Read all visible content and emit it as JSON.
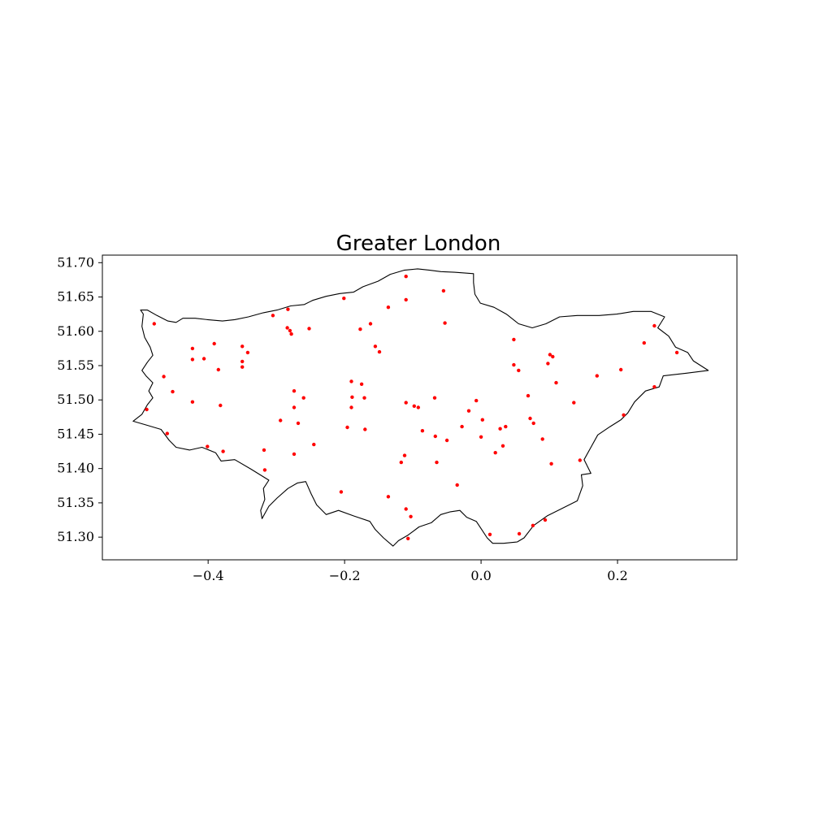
{
  "chart_data": {
    "type": "scatter",
    "title": "Greater London",
    "xlabel": "",
    "ylabel": "",
    "xlim": [
      -0.555,
      0.375
    ],
    "ylim": [
      51.267,
      51.711
    ],
    "xticks": [
      -0.4,
      -0.2,
      0.0,
      0.2
    ],
    "xtick_labels": [
      "−0.4",
      "−0.2",
      "0.0",
      "0.2"
    ],
    "yticks": [
      51.3,
      51.35,
      51.4,
      51.45,
      51.5,
      51.55,
      51.6,
      51.65,
      51.7
    ],
    "ytick_labels": [
      "51.30",
      "51.35",
      "51.40",
      "51.45",
      "51.50",
      "51.55",
      "51.60",
      "51.65",
      "51.70"
    ],
    "grid": false,
    "legend": false,
    "colors": {
      "points": "#ff0000",
      "boundary": "#000000",
      "axes": "#000000",
      "background": "#ffffff"
    },
    "boundary": {
      "name": "Greater London boundary",
      "coords": [
        [
          -0.51,
          51.469
        ],
        [
          -0.497,
          51.479
        ],
        [
          -0.489,
          51.493
        ],
        [
          -0.481,
          51.503
        ],
        [
          -0.487,
          51.513
        ],
        [
          -0.481,
          51.525
        ],
        [
          -0.491,
          51.535
        ],
        [
          -0.497,
          51.543
        ],
        [
          -0.489,
          51.555
        ],
        [
          -0.481,
          51.565
        ],
        [
          -0.485,
          51.577
        ],
        [
          -0.493,
          51.591
        ],
        [
          -0.497,
          51.607
        ],
        [
          -0.495,
          51.625
        ],
        [
          -0.499,
          51.631
        ],
        [
          -0.489,
          51.631
        ],
        [
          -0.475,
          51.623
        ],
        [
          -0.459,
          51.615
        ],
        [
          -0.447,
          51.613
        ],
        [
          -0.437,
          51.619
        ],
        [
          -0.419,
          51.619
        ],
        [
          -0.401,
          51.617
        ],
        [
          -0.379,
          51.615
        ],
        [
          -0.361,
          51.617
        ],
        [
          -0.341,
          51.621
        ],
        [
          -0.319,
          51.627
        ],
        [
          -0.299,
          51.631
        ],
        [
          -0.279,
          51.637
        ],
        [
          -0.259,
          51.639
        ],
        [
          -0.247,
          51.645
        ],
        [
          -0.227,
          51.651
        ],
        [
          -0.207,
          51.655
        ],
        [
          -0.187,
          51.657
        ],
        [
          -0.173,
          51.665
        ],
        [
          -0.151,
          51.673
        ],
        [
          -0.133,
          51.683
        ],
        [
          -0.113,
          51.689
        ],
        [
          -0.093,
          51.691
        ],
        [
          -0.075,
          51.689
        ],
        [
          -0.059,
          51.687
        ],
        [
          -0.039,
          51.686
        ],
        [
          -0.011,
          51.684
        ],
        [
          -0.011,
          51.671
        ],
        [
          -0.009,
          51.654
        ],
        [
          -0.001,
          51.641
        ],
        [
          0.019,
          51.635
        ],
        [
          0.037,
          51.625
        ],
        [
          0.055,
          51.611
        ],
        [
          0.075,
          51.605
        ],
        [
          0.095,
          51.611
        ],
        [
          0.115,
          51.621
        ],
        [
          0.141,
          51.623
        ],
        [
          0.173,
          51.623
        ],
        [
          0.199,
          51.625
        ],
        [
          0.223,
          51.629
        ],
        [
          0.249,
          51.629
        ],
        [
          0.269,
          51.621
        ],
        [
          0.259,
          51.605
        ],
        [
          0.275,
          51.593
        ],
        [
          0.285,
          51.577
        ],
        [
          0.303,
          51.569
        ],
        [
          0.311,
          51.557
        ],
        [
          0.333,
          51.543
        ],
        [
          0.301,
          51.539
        ],
        [
          0.267,
          51.535
        ],
        [
          0.261,
          51.519
        ],
        [
          0.241,
          51.513
        ],
        [
          0.225,
          51.497
        ],
        [
          0.215,
          51.481
        ],
        [
          0.205,
          51.471
        ],
        [
          0.189,
          51.461
        ],
        [
          0.171,
          51.449
        ],
        [
          0.161,
          51.431
        ],
        [
          0.151,
          51.413
        ],
        [
          0.161,
          51.393
        ],
        [
          0.147,
          51.391
        ],
        [
          0.149,
          51.375
        ],
        [
          0.141,
          51.353
        ],
        [
          0.117,
          51.341
        ],
        [
          0.097,
          51.331
        ],
        [
          0.077,
          51.317
        ],
        [
          0.063,
          51.299
        ],
        [
          0.053,
          51.293
        ],
        [
          0.033,
          51.291
        ],
        [
          0.017,
          51.291
        ],
        [
          0.009,
          51.299
        ],
        [
          0.001,
          51.311
        ],
        [
          -0.007,
          51.323
        ],
        [
          -0.021,
          51.329
        ],
        [
          -0.031,
          51.339
        ],
        [
          -0.045,
          51.337
        ],
        [
          -0.059,
          51.333
        ],
        [
          -0.073,
          51.321
        ],
        [
          -0.091,
          51.315
        ],
        [
          -0.107,
          51.303
        ],
        [
          -0.121,
          51.295
        ],
        [
          -0.129,
          51.287
        ],
        [
          -0.143,
          51.299
        ],
        [
          -0.155,
          51.311
        ],
        [
          -0.163,
          51.323
        ],
        [
          -0.187,
          51.331
        ],
        [
          -0.209,
          51.339
        ],
        [
          -0.227,
          51.333
        ],
        [
          -0.241,
          51.347
        ],
        [
          -0.249,
          51.363
        ],
        [
          -0.257,
          51.381
        ],
        [
          -0.269,
          51.379
        ],
        [
          -0.283,
          51.371
        ],
        [
          -0.299,
          51.357
        ],
        [
          -0.311,
          51.345
        ],
        [
          -0.321,
          51.327
        ],
        [
          -0.323,
          51.339
        ],
        [
          -0.317,
          51.355
        ],
        [
          -0.319,
          51.371
        ],
        [
          -0.311,
          51.383
        ],
        [
          -0.337,
          51.399
        ],
        [
          -0.361,
          51.413
        ],
        [
          -0.381,
          51.411
        ],
        [
          -0.389,
          51.423
        ],
        [
          -0.409,
          51.431
        ],
        [
          -0.427,
          51.427
        ],
        [
          -0.447,
          51.431
        ],
        [
          -0.457,
          51.441
        ],
        [
          -0.469,
          51.457
        ],
        [
          -0.489,
          51.463
        ],
        [
          -0.51,
          51.469
        ]
      ]
    },
    "points": [
      {
        "x": -0.479,
        "y": 51.611
      },
      {
        "x": -0.465,
        "y": 51.534
      },
      {
        "x": -0.49,
        "y": 51.486
      },
      {
        "x": -0.46,
        "y": 51.451
      },
      {
        "x": -0.452,
        "y": 51.512
      },
      {
        "x": -0.423,
        "y": 51.575
      },
      {
        "x": -0.423,
        "y": 51.559
      },
      {
        "x": -0.406,
        "y": 51.56
      },
      {
        "x": -0.423,
        "y": 51.497
      },
      {
        "x": -0.401,
        "y": 51.432
      },
      {
        "x": -0.378,
        "y": 51.425
      },
      {
        "x": -0.391,
        "y": 51.582
      },
      {
        "x": -0.385,
        "y": 51.544
      },
      {
        "x": -0.382,
        "y": 51.492
      },
      {
        "x": -0.35,
        "y": 51.578
      },
      {
        "x": -0.342,
        "y": 51.569
      },
      {
        "x": -0.35,
        "y": 51.556
      },
      {
        "x": -0.35,
        "y": 51.548
      },
      {
        "x": -0.318,
        "y": 51.427
      },
      {
        "x": -0.317,
        "y": 51.398
      },
      {
        "x": -0.305,
        "y": 51.623
      },
      {
        "x": -0.283,
        "y": 51.632
      },
      {
        "x": -0.284,
        "y": 51.605
      },
      {
        "x": -0.28,
        "y": 51.601
      },
      {
        "x": -0.278,
        "y": 51.596
      },
      {
        "x": -0.252,
        "y": 51.604
      },
      {
        "x": -0.274,
        "y": 51.513
      },
      {
        "x": -0.26,
        "y": 51.503
      },
      {
        "x": -0.274,
        "y": 51.489
      },
      {
        "x": -0.294,
        "y": 51.47
      },
      {
        "x": -0.268,
        "y": 51.466
      },
      {
        "x": -0.274,
        "y": 51.421
      },
      {
        "x": -0.245,
        "y": 51.435
      },
      {
        "x": -0.201,
        "y": 51.648
      },
      {
        "x": -0.177,
        "y": 51.603
      },
      {
        "x": -0.162,
        "y": 51.611
      },
      {
        "x": -0.155,
        "y": 51.578
      },
      {
        "x": -0.149,
        "y": 51.57
      },
      {
        "x": -0.136,
        "y": 51.635
      },
      {
        "x": -0.19,
        "y": 51.527
      },
      {
        "x": -0.175,
        "y": 51.523
      },
      {
        "x": -0.189,
        "y": 51.504
      },
      {
        "x": -0.171,
        "y": 51.503
      },
      {
        "x": -0.19,
        "y": 51.489
      },
      {
        "x": -0.196,
        "y": 51.46
      },
      {
        "x": -0.17,
        "y": 51.457
      },
      {
        "x": -0.205,
        "y": 51.366
      },
      {
        "x": -0.136,
        "y": 51.359
      },
      {
        "x": -0.11,
        "y": 51.68
      },
      {
        "x": -0.11,
        "y": 51.646
      },
      {
        "x": -0.055,
        "y": 51.659
      },
      {
        "x": -0.053,
        "y": 51.612
      },
      {
        "x": -0.11,
        "y": 51.496
      },
      {
        "x": -0.098,
        "y": 51.491
      },
      {
        "x": -0.092,
        "y": 51.489
      },
      {
        "x": -0.086,
        "y": 51.455
      },
      {
        "x": -0.068,
        "y": 51.503
      },
      {
        "x": -0.067,
        "y": 51.447
      },
      {
        "x": -0.05,
        "y": 51.441
      },
      {
        "x": -0.112,
        "y": 51.419
      },
      {
        "x": -0.117,
        "y": 51.409
      },
      {
        "x": -0.065,
        "y": 51.409
      },
      {
        "x": -0.11,
        "y": 51.341
      },
      {
        "x": -0.103,
        "y": 51.33
      },
      {
        "x": -0.107,
        "y": 51.298
      },
      {
        "x": -0.035,
        "y": 51.376
      },
      {
        "x": -0.028,
        "y": 51.461
      },
      {
        "x": -0.018,
        "y": 51.484
      },
      {
        "x": -0.007,
        "y": 51.499
      },
      {
        "x": 0.002,
        "y": 51.471
      },
      {
        "x": 0.0,
        "y": 51.446
      },
      {
        "x": 0.028,
        "y": 51.458
      },
      {
        "x": 0.036,
        "y": 51.461
      },
      {
        "x": 0.032,
        "y": 51.433
      },
      {
        "x": 0.021,
        "y": 51.423
      },
      {
        "x": 0.048,
        "y": 51.588
      },
      {
        "x": 0.048,
        "y": 51.551
      },
      {
        "x": 0.055,
        "y": 51.543
      },
      {
        "x": 0.069,
        "y": 51.506
      },
      {
        "x": 0.072,
        "y": 51.473
      },
      {
        "x": 0.077,
        "y": 51.466
      },
      {
        "x": 0.09,
        "y": 51.443
      },
      {
        "x": 0.013,
        "y": 51.304
      },
      {
        "x": 0.056,
        "y": 51.305
      },
      {
        "x": 0.076,
        "y": 51.317
      },
      {
        "x": 0.094,
        "y": 51.325
      },
      {
        "x": 0.101,
        "y": 51.566
      },
      {
        "x": 0.105,
        "y": 51.563
      },
      {
        "x": 0.098,
        "y": 51.553
      },
      {
        "x": 0.11,
        "y": 51.525
      },
      {
        "x": 0.136,
        "y": 51.496
      },
      {
        "x": 0.103,
        "y": 51.407
      },
      {
        "x": 0.145,
        "y": 51.412
      },
      {
        "x": 0.17,
        "y": 51.535
      },
      {
        "x": 0.205,
        "y": 51.544
      },
      {
        "x": 0.209,
        "y": 51.478
      },
      {
        "x": 0.239,
        "y": 51.583
      },
      {
        "x": 0.254,
        "y": 51.608
      },
      {
        "x": 0.254,
        "y": 51.519
      },
      {
        "x": 0.287,
        "y": 51.569
      }
    ]
  }
}
